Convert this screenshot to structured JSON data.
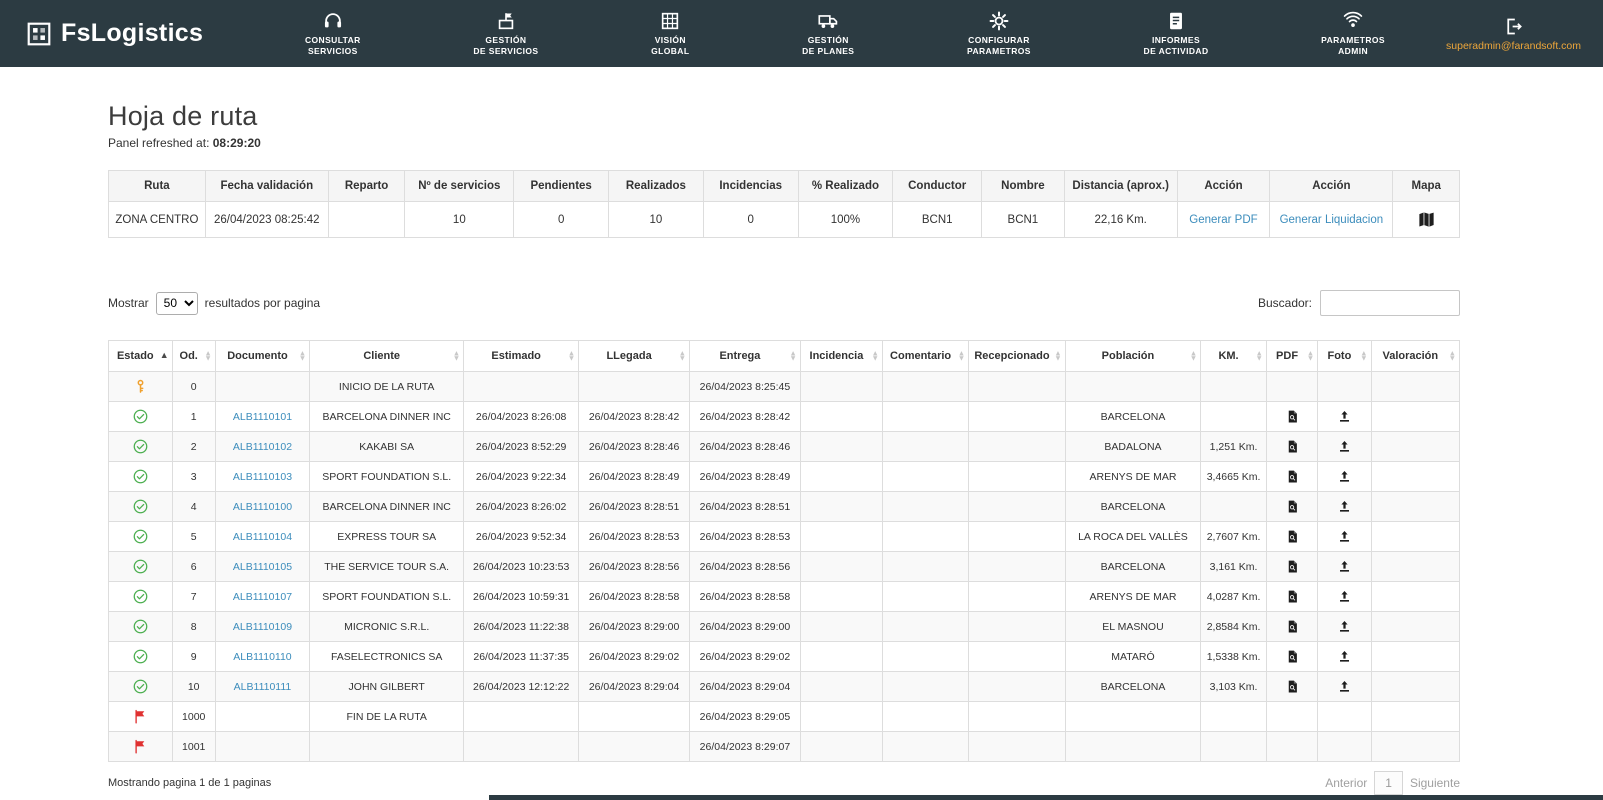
{
  "nav": {
    "brand": "FsLogistics",
    "items": [
      {
        "id": "consultar-servicios",
        "icon": "headset-icon",
        "lines": [
          "CONSULTAR",
          "SERVICIOS"
        ]
      },
      {
        "id": "gestion-de-servicios",
        "icon": "flag-box-icon",
        "lines": [
          "GESTIÓN",
          "DE SERVICIOS"
        ]
      },
      {
        "id": "vision-global",
        "icon": "grid-globe-icon",
        "lines": [
          "VISIÓN",
          "GLOBAL"
        ]
      },
      {
        "id": "gestion-de-planes",
        "icon": "truck-icon",
        "lines": [
          "GESTIÓN",
          "DE PLANES"
        ]
      },
      {
        "id": "configurar-parametros",
        "icon": "gear-icon",
        "lines": [
          "CONFIGURAR",
          "PARAMETROS"
        ]
      },
      {
        "id": "informes-de-actividad",
        "icon": "report-icon",
        "lines": [
          "INFORMES",
          "DE ACTIVIDAD"
        ]
      },
      {
        "id": "parametros-admin",
        "icon": "signal-icon",
        "lines": [
          "PARAMETROS",
          "ADMIN"
        ]
      }
    ],
    "user_email": "superadmin@farandsoft.com"
  },
  "page": {
    "title": "Hoja de ruta",
    "refreshed_label": "Panel refreshed at:",
    "refreshed_time": "08:29:20"
  },
  "summary_table": {
    "headers": [
      "Ruta",
      "Fecha validación",
      "Reparto",
      "Nº de servicios",
      "Pendientes",
      "Realizados",
      "Incidencias",
      "% Realizado",
      "Conductor",
      "Nombre",
      "Distancia (aprox.)",
      "Acción",
      "Acción",
      "Mapa"
    ],
    "row": {
      "ruta": "ZONA CENTRO",
      "fecha_validacion": "26/04/2023 08:25:42",
      "reparto": "",
      "num_servicios": "10",
      "pendientes": "0",
      "realizados": "10",
      "incidencias": "0",
      "pct_realizado": "100%",
      "conductor": "BCN1",
      "nombre": "BCN1",
      "distancia": "22,16 Km.",
      "accion_pdf": "Generar PDF",
      "accion_liquidacion": "Generar Liquidacion"
    }
  },
  "controls": {
    "mostrar_label": "Mostrar",
    "page_size": "50",
    "resultados_label": "resultados por pagina",
    "buscador_label": "Buscador:"
  },
  "detail_table": {
    "headers": [
      "Estado",
      "Od.",
      "Documento",
      "Cliente",
      "Estimado",
      "LLegada",
      "Entrega",
      "Incidencia",
      "Comentario",
      "Recepcionado",
      "Población",
      "KM.",
      "PDF",
      "Foto",
      "Valoración"
    ],
    "rows": [
      {
        "status": "start",
        "od": "0",
        "documento": "",
        "cliente": "INICIO DE LA RUTA",
        "estimado": "",
        "llegada": "",
        "entrega": "26/04/2023 8:25:45",
        "poblacion": "",
        "km": "",
        "pdf": false,
        "foto": false
      },
      {
        "status": "done",
        "od": "1",
        "documento": "ALB1110101",
        "cliente": "BARCELONA DINNER INC",
        "estimado": "26/04/2023 8:26:08",
        "llegada": "26/04/2023 8:28:42",
        "entrega": "26/04/2023 8:28:42",
        "poblacion": "BARCELONA",
        "km": "",
        "pdf": true,
        "foto": true
      },
      {
        "status": "done",
        "od": "2",
        "documento": "ALB1110102",
        "cliente": "KAKABI SA",
        "estimado": "26/04/2023 8:52:29",
        "llegada": "26/04/2023 8:28:46",
        "entrega": "26/04/2023 8:28:46",
        "poblacion": "BADALONA",
        "km": "1,251 Km.",
        "pdf": true,
        "foto": true
      },
      {
        "status": "done",
        "od": "3",
        "documento": "ALB1110103",
        "cliente": "SPORT FOUNDATION S.L.",
        "estimado": "26/04/2023 9:22:34",
        "llegada": "26/04/2023 8:28:49",
        "entrega": "26/04/2023 8:28:49",
        "poblacion": "ARENYS DE MAR",
        "km": "3,4665 Km.",
        "pdf": true,
        "foto": true
      },
      {
        "status": "done",
        "od": "4",
        "documento": "ALB1110100",
        "cliente": "BARCELONA DINNER INC",
        "estimado": "26/04/2023 8:26:02",
        "llegada": "26/04/2023 8:28:51",
        "entrega": "26/04/2023 8:28:51",
        "poblacion": "BARCELONA",
        "km": "",
        "pdf": true,
        "foto": true
      },
      {
        "status": "done",
        "od": "5",
        "documento": "ALB1110104",
        "cliente": "EXPRESS TOUR SA",
        "estimado": "26/04/2023 9:52:34",
        "llegada": "26/04/2023 8:28:53",
        "entrega": "26/04/2023 8:28:53",
        "poblacion": "LA ROCA DEL VALLÈS",
        "km": "2,7607 Km.",
        "pdf": true,
        "foto": true
      },
      {
        "status": "done",
        "od": "6",
        "documento": "ALB1110105",
        "cliente": "THE SERVICE TOUR S.A.",
        "estimado": "26/04/2023 10:23:53",
        "llegada": "26/04/2023 8:28:56",
        "entrega": "26/04/2023 8:28:56",
        "poblacion": "BARCELONA",
        "km": "3,161 Km.",
        "pdf": true,
        "foto": true
      },
      {
        "status": "done",
        "od": "7",
        "documento": "ALB1110107",
        "cliente": "SPORT FOUNDATION S.L.",
        "estimado": "26/04/2023 10:59:31",
        "llegada": "26/04/2023 8:28:58",
        "entrega": "26/04/2023 8:28:58",
        "poblacion": "ARENYS DE MAR",
        "km": "4,0287 Km.",
        "pdf": true,
        "foto": true
      },
      {
        "status": "done",
        "od": "8",
        "documento": "ALB1110109",
        "cliente": "MICRONIC S.R.L.",
        "estimado": "26/04/2023 11:22:38",
        "llegada": "26/04/2023 8:29:00",
        "entrega": "26/04/2023 8:29:00",
        "poblacion": "EL MASNOU",
        "km": "2,8584 Km.",
        "pdf": true,
        "foto": true
      },
      {
        "status": "done",
        "od": "9",
        "documento": "ALB1110110",
        "cliente": "FASELECTRONICS SA",
        "estimado": "26/04/2023 11:37:35",
        "llegada": "26/04/2023 8:29:02",
        "entrega": "26/04/2023 8:29:02",
        "poblacion": "MATARÓ",
        "km": "1,5338 Km.",
        "pdf": true,
        "foto": true
      },
      {
        "status": "done",
        "od": "10",
        "documento": "ALB1110111",
        "cliente": "JOHN GILBERT",
        "estimado": "26/04/2023 12:12:22",
        "llegada": "26/04/2023 8:29:04",
        "entrega": "26/04/2023 8:29:04",
        "poblacion": "BARCELONA",
        "km": "3,103 Km.",
        "pdf": true,
        "foto": true
      },
      {
        "status": "end",
        "od": "1000",
        "documento": "",
        "cliente": "FIN DE LA RUTA",
        "estimado": "",
        "llegada": "",
        "entrega": "26/04/2023 8:29:05",
        "poblacion": "",
        "km": "",
        "pdf": false,
        "foto": false
      },
      {
        "status": "end",
        "od": "1001",
        "documento": "",
        "cliente": "",
        "estimado": "",
        "llegada": "",
        "entrega": "26/04/2023 8:29:07",
        "poblacion": "",
        "km": "",
        "pdf": false,
        "foto": false
      }
    ],
    "footer_text": "Mostrando pagina 1 de 1 paginas",
    "pagination": {
      "prev": "Anterior",
      "page": "1",
      "next": "Siguiente"
    }
  },
  "colors": {
    "navbar": "#2c3b42",
    "email": "#eda63a",
    "link": "#3c8dbc",
    "check_green": "#4caf50",
    "flag_red": "#e03131",
    "key_orange": "#f0a12f"
  }
}
